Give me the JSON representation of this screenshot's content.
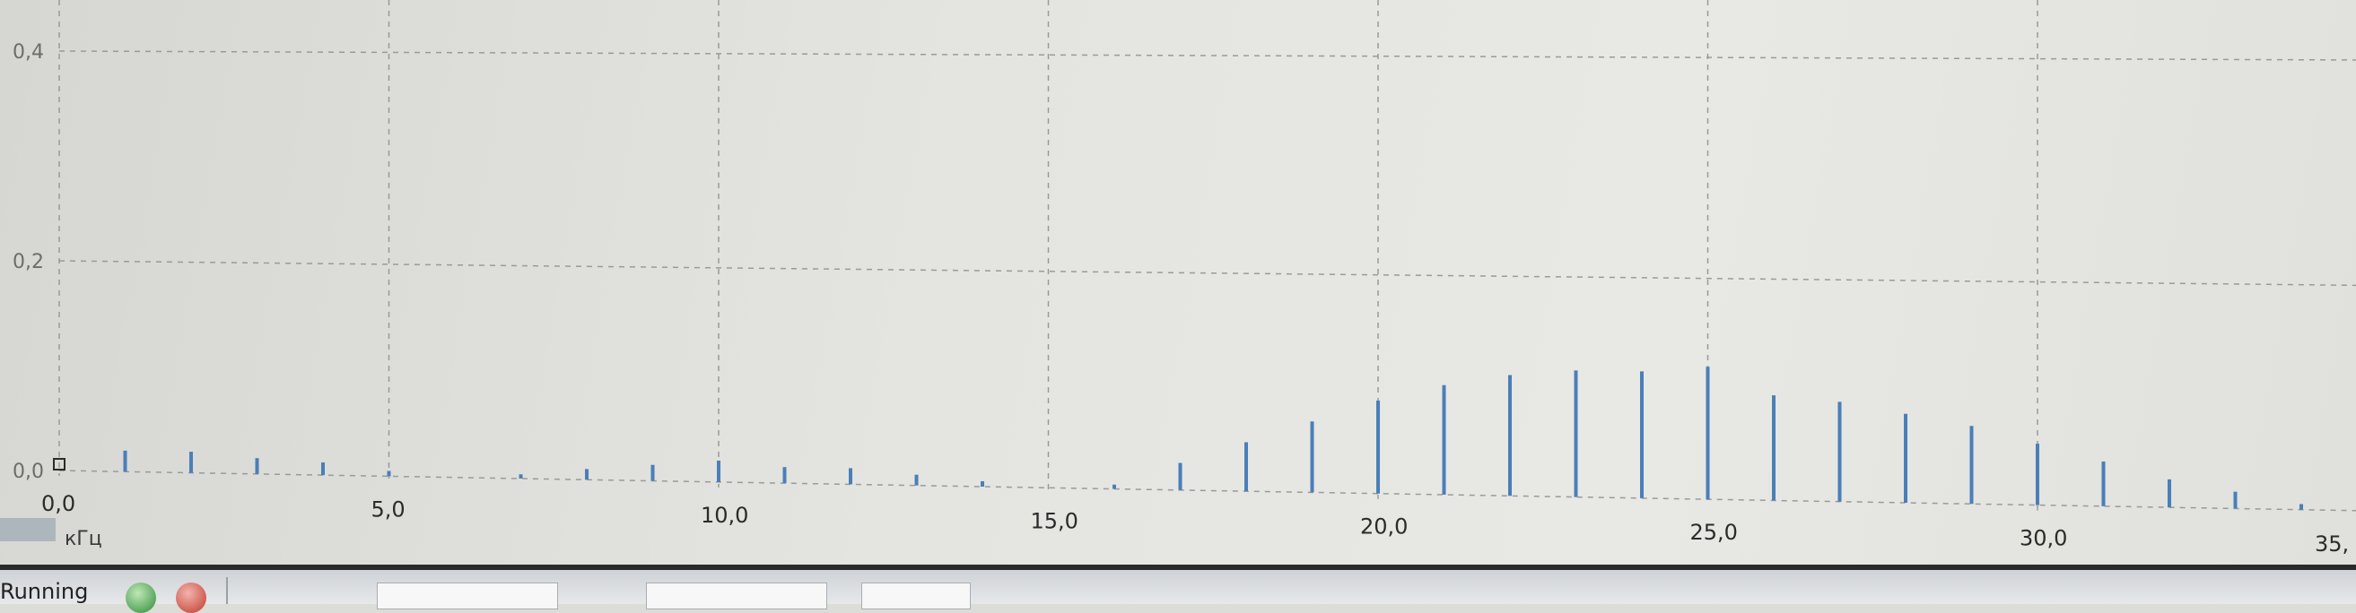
{
  "chart_data": {
    "type": "bar",
    "xlabel": "",
    "ylabel": "",
    "x_unit_label": "кГц",
    "xlim": [
      0,
      35
    ],
    "ylim": [
      0,
      0.4
    ],
    "x_ticks": [
      "0,0",
      "5,0",
      "10,0",
      "15,0",
      "20,0",
      "25,0",
      "30,0",
      "35,"
    ],
    "y_ticks": [
      "0,0",
      "0,2",
      "0,4"
    ],
    "grid": true,
    "series": [
      {
        "color": "#4a7fb8",
        "x": [
          1.0,
          2.0,
          3.0,
          4.0,
          5.0,
          7.0,
          8.0,
          9.0,
          10.0,
          11.0,
          12.0,
          13.0,
          14.0,
          16.0,
          17.0,
          18.0,
          19.0,
          20.0,
          21.0,
          22.0,
          23.0,
          24.0,
          25.0,
          26.0,
          27.0,
          28.0,
          29.0,
          30.0,
          31.0,
          32.0,
          33.0,
          34.0
        ],
        "values": [
          0.02,
          0.02,
          0.015,
          0.012,
          0.005,
          0.004,
          0.01,
          0.015,
          0.02,
          0.015,
          0.015,
          0.01,
          0.005,
          0.004,
          0.025,
          0.045,
          0.065,
          0.085,
          0.1,
          0.11,
          0.115,
          0.115,
          0.12,
          0.095,
          0.09,
          0.08,
          0.07,
          0.055,
          0.04,
          0.025,
          0.015,
          0.005
        ]
      }
    ]
  },
  "statusbar": {
    "text": "Running"
  }
}
